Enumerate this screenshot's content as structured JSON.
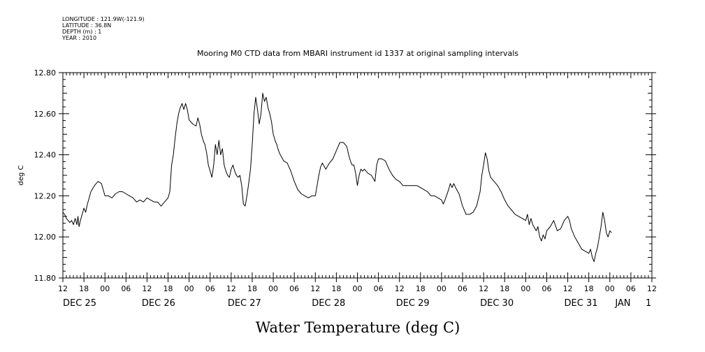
{
  "metadata": {
    "lines": [
      "LONGITUDE : 121.9W(-121.9)",
      "LATITUDE : 36.8N",
      "DEPTH (m) : 1",
      "YEAR : 2010"
    ]
  },
  "chart_data": {
    "type": "line",
    "title": "Mooring M0 CTD data from MBARI instrument id 1337 at original sampling intervals",
    "xlabel": "Water Temperature (deg C)",
    "ylabel": "deg C",
    "ylim": [
      11.8,
      12.8
    ],
    "yticks": [
      "11.80",
      "12.00",
      "12.20",
      "12.40",
      "12.60",
      "12.80"
    ],
    "xlim_hours": [
      0,
      168
    ],
    "x_start": "2010-12-25 12:00",
    "x_end": "2011-01-01 12:00",
    "xtick_labels": [
      "12",
      "18",
      "00",
      "06",
      "12",
      "18",
      "00",
      "06",
      "12",
      "18",
      "00",
      "06",
      "12",
      "18",
      "00",
      "06",
      "12",
      "18",
      "00",
      "06",
      "12",
      "18",
      "00",
      "06",
      "12",
      "18",
      "00",
      "06",
      "12"
    ],
    "day_labels": [
      {
        "text": "DEC 25",
        "hour": 0
      },
      {
        "text": "DEC 26",
        "hour": 22.5
      },
      {
        "text": "DEC 27",
        "hour": 47
      },
      {
        "text": "DEC 28",
        "hour": 71
      },
      {
        "text": "DEC 29",
        "hour": 95
      },
      {
        "text": "DEC 30",
        "hour": 119
      },
      {
        "text": "DEC 31",
        "hour": 143
      },
      {
        "text": "JAN",
        "hour": 157.5
      },
      {
        "text": "1",
        "hour": 166.2
      }
    ],
    "grid": false,
    "series": [
      {
        "color": "#000000",
        "points": [
          [
            0.0,
            12.12
          ],
          [
            0.5,
            12.11
          ],
          [
            1.0,
            12.09
          ],
          [
            1.5,
            12.08
          ],
          [
            2.0,
            12.07
          ],
          [
            2.5,
            12.08
          ],
          [
            3.0,
            12.06
          ],
          [
            3.5,
            12.09
          ],
          [
            4.0,
            12.06
          ],
          [
            4.3,
            12.1
          ],
          [
            4.6,
            12.05
          ],
          [
            5.0,
            12.08
          ],
          [
            5.5,
            12.11
          ],
          [
            6.0,
            12.14
          ],
          [
            6.5,
            12.12
          ],
          [
            7.0,
            12.16
          ],
          [
            8.0,
            12.22
          ],
          [
            9.0,
            12.25
          ],
          [
            10.0,
            12.27
          ],
          [
            11.0,
            12.26
          ],
          [
            11.5,
            12.23
          ],
          [
            12.0,
            12.2
          ],
          [
            13.0,
            12.2
          ],
          [
            14.0,
            12.19
          ],
          [
            15.0,
            12.21
          ],
          [
            16.0,
            12.22
          ],
          [
            17.0,
            12.22
          ],
          [
            18.0,
            12.21
          ],
          [
            19.0,
            12.2
          ],
          [
            20.0,
            12.19
          ],
          [
            21.0,
            12.17
          ],
          [
            22.0,
            12.18
          ],
          [
            23.0,
            12.17
          ],
          [
            24.0,
            12.19
          ],
          [
            25.0,
            12.18
          ],
          [
            26.0,
            12.17
          ],
          [
            27.0,
            12.17
          ],
          [
            28.0,
            12.15
          ],
          [
            29.0,
            12.17
          ],
          [
            30.0,
            12.19
          ],
          [
            30.5,
            12.22
          ],
          [
            31.0,
            12.35
          ],
          [
            31.5,
            12.4
          ],
          [
            32.0,
            12.48
          ],
          [
            32.5,
            12.55
          ],
          [
            33.0,
            12.6
          ],
          [
            33.5,
            12.63
          ],
          [
            34.0,
            12.65
          ],
          [
            34.5,
            12.62
          ],
          [
            35.0,
            12.65
          ],
          [
            35.5,
            12.62
          ],
          [
            36.0,
            12.57
          ],
          [
            37.0,
            12.55
          ],
          [
            38.0,
            12.54
          ],
          [
            38.5,
            12.58
          ],
          [
            39.0,
            12.55
          ],
          [
            39.5,
            12.5
          ],
          [
            40.0,
            12.47
          ],
          [
            40.5,
            12.45
          ],
          [
            41.0,
            12.41
          ],
          [
            41.5,
            12.35
          ],
          [
            42.0,
            12.32
          ],
          [
            42.5,
            12.29
          ],
          [
            43.0,
            12.35
          ],
          [
            43.5,
            12.45
          ],
          [
            44.0,
            12.4
          ],
          [
            44.5,
            12.47
          ],
          [
            45.0,
            12.4
          ],
          [
            45.5,
            12.43
          ],
          [
            46.0,
            12.35
          ],
          [
            46.5,
            12.32
          ],
          [
            47.0,
            12.3
          ],
          [
            47.5,
            12.29
          ],
          [
            48.0,
            12.33
          ],
          [
            48.5,
            12.35
          ],
          [
            49.0,
            12.32
          ],
          [
            49.5,
            12.3
          ],
          [
            50.0,
            12.29
          ],
          [
            50.5,
            12.3
          ],
          [
            51.0,
            12.25
          ],
          [
            51.5,
            12.16
          ],
          [
            52.0,
            12.15
          ],
          [
            52.5,
            12.2
          ],
          [
            53.0,
            12.26
          ],
          [
            53.5,
            12.33
          ],
          [
            54.0,
            12.45
          ],
          [
            54.5,
            12.6
          ],
          [
            55.0,
            12.68
          ],
          [
            55.5,
            12.62
          ],
          [
            56.0,
            12.55
          ],
          [
            56.5,
            12.6
          ],
          [
            57.0,
            12.7
          ],
          [
            57.5,
            12.66
          ],
          [
            58.0,
            12.68
          ],
          [
            58.5,
            12.63
          ],
          [
            59.0,
            12.6
          ],
          [
            59.5,
            12.56
          ],
          [
            60.0,
            12.5
          ],
          [
            60.5,
            12.47
          ],
          [
            61.0,
            12.45
          ],
          [
            61.5,
            12.42
          ],
          [
            62.0,
            12.4
          ],
          [
            63.0,
            12.37
          ],
          [
            64.0,
            12.36
          ],
          [
            65.0,
            12.32
          ],
          [
            66.0,
            12.27
          ],
          [
            67.0,
            12.23
          ],
          [
            68.0,
            12.21
          ],
          [
            69.0,
            12.2
          ],
          [
            70.0,
            12.19
          ],
          [
            71.0,
            12.2
          ],
          [
            72.0,
            12.2
          ],
          [
            72.5,
            12.25
          ],
          [
            73.0,
            12.3
          ],
          [
            73.5,
            12.34
          ],
          [
            74.0,
            12.36
          ],
          [
            75.0,
            12.33
          ],
          [
            76.0,
            12.36
          ],
          [
            77.0,
            12.38
          ],
          [
            78.0,
            12.42
          ],
          [
            79.0,
            12.46
          ],
          [
            80.0,
            12.46
          ],
          [
            81.0,
            12.44
          ],
          [
            81.5,
            12.4
          ],
          [
            82.0,
            12.37
          ],
          [
            82.5,
            12.35
          ],
          [
            83.0,
            12.35
          ],
          [
            83.5,
            12.31
          ],
          [
            84.0,
            12.25
          ],
          [
            84.5,
            12.3
          ],
          [
            85.0,
            12.33
          ],
          [
            85.5,
            12.32
          ],
          [
            86.0,
            12.33
          ],
          [
            87.0,
            12.31
          ],
          [
            88.0,
            12.3
          ],
          [
            89.0,
            12.27
          ],
          [
            89.5,
            12.35
          ],
          [
            90.0,
            12.38
          ],
          [
            91.0,
            12.38
          ],
          [
            92.0,
            12.37
          ],
          [
            93.0,
            12.33
          ],
          [
            94.0,
            12.3
          ],
          [
            95.0,
            12.28
          ],
          [
            96.0,
            12.27
          ],
          [
            97.0,
            12.25
          ],
          [
            98.0,
            12.25
          ],
          [
            99.0,
            12.25
          ],
          [
            100.0,
            12.25
          ],
          [
            101.0,
            12.25
          ],
          [
            102.0,
            12.24
          ],
          [
            103.0,
            12.23
          ],
          [
            104.0,
            12.22
          ],
          [
            105.0,
            12.2
          ],
          [
            106.0,
            12.2
          ],
          [
            107.0,
            12.19
          ],
          [
            108.0,
            12.18
          ],
          [
            108.5,
            12.16
          ],
          [
            109.0,
            12.18
          ],
          [
            110.0,
            12.23
          ],
          [
            110.5,
            12.26
          ],
          [
            111.0,
            12.24
          ],
          [
            111.5,
            12.26
          ],
          [
            112.0,
            12.24
          ],
          [
            113.0,
            12.21
          ],
          [
            114.0,
            12.15
          ],
          [
            115.0,
            12.11
          ],
          [
            116.0,
            12.11
          ],
          [
            117.0,
            12.12
          ],
          [
            118.0,
            12.15
          ],
          [
            119.0,
            12.22
          ],
          [
            119.5,
            12.3
          ],
          [
            120.0,
            12.35
          ],
          [
            120.5,
            12.41
          ],
          [
            121.0,
            12.38
          ],
          [
            121.5,
            12.32
          ],
          [
            122.0,
            12.29
          ],
          [
            123.0,
            12.27
          ],
          [
            124.0,
            12.25
          ],
          [
            125.0,
            12.22
          ],
          [
            126.0,
            12.18
          ],
          [
            127.0,
            12.15
          ],
          [
            128.0,
            12.13
          ],
          [
            129.0,
            12.11
          ],
          [
            130.0,
            12.1
          ],
          [
            131.0,
            12.09
          ],
          [
            132.0,
            12.08
          ],
          [
            132.5,
            12.11
          ],
          [
            133.0,
            12.06
          ],
          [
            133.5,
            12.09
          ],
          [
            134.0,
            12.06
          ],
          [
            135.0,
            12.03
          ],
          [
            135.5,
            12.05
          ],
          [
            136.0,
            12.0
          ],
          [
            136.5,
            11.98
          ],
          [
            137.0,
            12.01
          ],
          [
            137.5,
            11.99
          ],
          [
            138.0,
            12.03
          ],
          [
            139.0,
            12.05
          ],
          [
            140.0,
            12.08
          ],
          [
            141.0,
            12.03
          ],
          [
            142.0,
            12.04
          ],
          [
            143.0,
            12.08
          ],
          [
            144.0,
            12.1
          ],
          [
            144.5,
            12.08
          ],
          [
            145.0,
            12.04
          ],
          [
            146.0,
            12.0
          ],
          [
            147.0,
            11.97
          ],
          [
            148.0,
            11.94
          ],
          [
            149.0,
            11.93
          ],
          [
            150.0,
            11.92
          ],
          [
            150.5,
            11.94
          ],
          [
            151.0,
            11.9
          ],
          [
            151.5,
            11.88
          ],
          [
            152.0,
            11.92
          ],
          [
            152.5,
            11.95
          ],
          [
            153.0,
            12.0
          ],
          [
            153.5,
            12.05
          ],
          [
            154.0,
            12.12
          ],
          [
            154.5,
            12.08
          ],
          [
            155.0,
            12.02
          ],
          [
            155.5,
            12.0
          ],
          [
            156.0,
            12.03
          ],
          [
            156.5,
            12.02
          ]
        ]
      }
    ]
  }
}
